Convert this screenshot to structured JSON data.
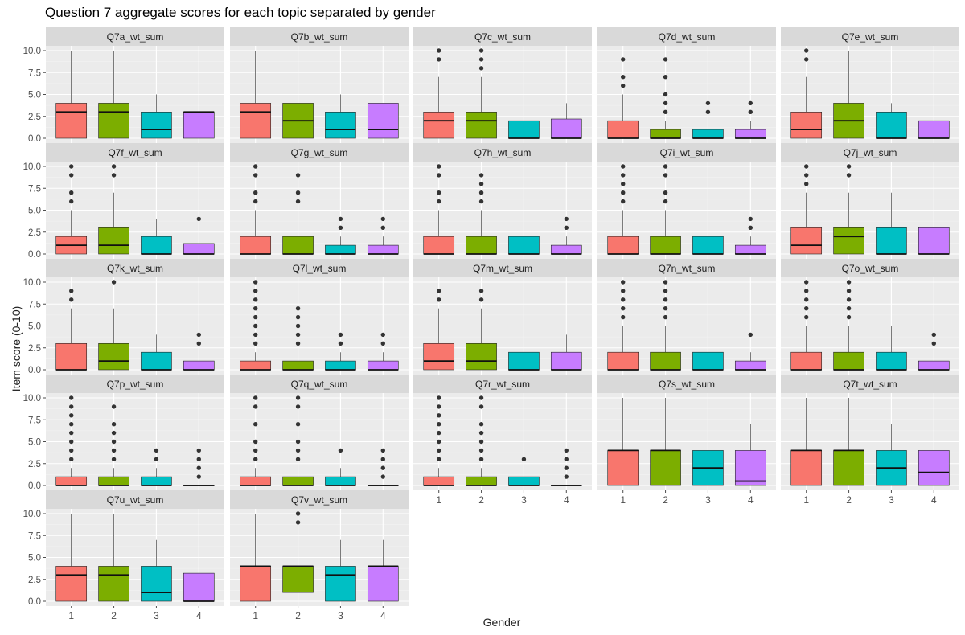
{
  "chart_data": {
    "type": "boxplot",
    "title": "Question 7 aggregate scores for each topic separated by gender",
    "xlabel": "Gender",
    "ylabel": "Item score (0-10)",
    "categories": [
      "1",
      "2",
      "3",
      "4"
    ],
    "ylim": [
      0,
      10
    ],
    "yticks": [
      "0.0",
      "2.5",
      "5.0",
      "7.5",
      "10.0"
    ],
    "colors": [
      "#F8766D",
      "#7CAE00",
      "#00BFC4",
      "#C77CFF"
    ],
    "panels": [
      {
        "name": "Q7a_wt_sum",
        "boxes": [
          {
            "q1": 0,
            "med": 3,
            "q3": 4,
            "lo": 0,
            "hi": 10,
            "out": []
          },
          {
            "q1": 0,
            "med": 3,
            "q3": 4,
            "lo": 0,
            "hi": 10,
            "out": []
          },
          {
            "q1": 0,
            "med": 1,
            "q3": 3,
            "lo": 0,
            "hi": 5,
            "out": []
          },
          {
            "q1": 0,
            "med": 3,
            "q3": 3,
            "lo": 0,
            "hi": 4,
            "out": []
          }
        ]
      },
      {
        "name": "Q7b_wt_sum",
        "boxes": [
          {
            "q1": 0,
            "med": 3,
            "q3": 4,
            "lo": 0,
            "hi": 10,
            "out": []
          },
          {
            "q1": 0,
            "med": 2,
            "q3": 4,
            "lo": 0,
            "hi": 10,
            "out": []
          },
          {
            "q1": 0,
            "med": 1,
            "q3": 3,
            "lo": 0,
            "hi": 5,
            "out": []
          },
          {
            "q1": 0,
            "med": 1,
            "q3": 4,
            "lo": 0,
            "hi": 4,
            "out": []
          }
        ]
      },
      {
        "name": "Q7c_wt_sum",
        "boxes": [
          {
            "q1": 0,
            "med": 2,
            "q3": 3,
            "lo": 0,
            "hi": 7,
            "out": [
              9,
              10
            ]
          },
          {
            "q1": 0,
            "med": 2,
            "q3": 3,
            "lo": 0,
            "hi": 7,
            "out": [
              8,
              9,
              10
            ]
          },
          {
            "q1": 0,
            "med": 0,
            "q3": 2,
            "lo": 0,
            "hi": 4,
            "out": []
          },
          {
            "q1": 0,
            "med": 0,
            "q3": 2.2,
            "lo": 0,
            "hi": 4,
            "out": []
          }
        ]
      },
      {
        "name": "Q7d_wt_sum",
        "boxes": [
          {
            "q1": 0,
            "med": 0,
            "q3": 2,
            "lo": 0,
            "hi": 5,
            "out": [
              6,
              7,
              9
            ]
          },
          {
            "q1": 0,
            "med": 0,
            "q3": 1,
            "lo": 0,
            "hi": 2,
            "out": [
              3,
              4,
              5,
              7,
              9
            ]
          },
          {
            "q1": 0,
            "med": 0,
            "q3": 1,
            "lo": 0,
            "hi": 2,
            "out": [
              3,
              4
            ]
          },
          {
            "q1": 0,
            "med": 0,
            "q3": 1,
            "lo": 0,
            "hi": 2,
            "out": [
              3,
              4
            ]
          }
        ]
      },
      {
        "name": "Q7e_wt_sum",
        "boxes": [
          {
            "q1": 0,
            "med": 1,
            "q3": 3,
            "lo": 0,
            "hi": 7,
            "out": [
              9,
              10
            ]
          },
          {
            "q1": 0,
            "med": 2,
            "q3": 4,
            "lo": 0,
            "hi": 10,
            "out": []
          },
          {
            "q1": 0,
            "med": 0,
            "q3": 3,
            "lo": 0,
            "hi": 4,
            "out": []
          },
          {
            "q1": 0,
            "med": 0,
            "q3": 2,
            "lo": 0,
            "hi": 4,
            "out": []
          }
        ]
      },
      {
        "name": "Q7f_wt_sum",
        "boxes": [
          {
            "q1": 0,
            "med": 1,
            "q3": 2,
            "lo": 0,
            "hi": 5,
            "out": [
              6,
              7,
              9,
              10
            ]
          },
          {
            "q1": 0,
            "med": 1,
            "q3": 3,
            "lo": 0,
            "hi": 7,
            "out": [
              9,
              10
            ]
          },
          {
            "q1": 0,
            "med": 0,
            "q3": 2,
            "lo": 0,
            "hi": 4,
            "out": []
          },
          {
            "q1": 0,
            "med": 0,
            "q3": 1.2,
            "lo": 0,
            "hi": 2,
            "out": [
              4
            ]
          }
        ]
      },
      {
        "name": "Q7g_wt_sum",
        "boxes": [
          {
            "q1": 0,
            "med": 0,
            "q3": 2,
            "lo": 0,
            "hi": 5,
            "out": [
              6,
              7,
              9,
              10
            ]
          },
          {
            "q1": 0,
            "med": 0,
            "q3": 2,
            "lo": 0,
            "hi": 5,
            "out": [
              6,
              7,
              9
            ]
          },
          {
            "q1": 0,
            "med": 0,
            "q3": 1,
            "lo": 0,
            "hi": 2,
            "out": [
              3,
              4
            ]
          },
          {
            "q1": 0,
            "med": 0,
            "q3": 1,
            "lo": 0,
            "hi": 2,
            "out": [
              3,
              4
            ]
          }
        ]
      },
      {
        "name": "Q7h_wt_sum",
        "boxes": [
          {
            "q1": 0,
            "med": 0,
            "q3": 2,
            "lo": 0,
            "hi": 5,
            "out": [
              6,
              7,
              9,
              10
            ]
          },
          {
            "q1": 0,
            "med": 0,
            "q3": 2,
            "lo": 0,
            "hi": 5,
            "out": [
              6,
              7,
              8,
              9
            ]
          },
          {
            "q1": 0,
            "med": 0,
            "q3": 2,
            "lo": 0,
            "hi": 4,
            "out": []
          },
          {
            "q1": 0,
            "med": 0,
            "q3": 1,
            "lo": 0,
            "hi": 2,
            "out": [
              3,
              4
            ]
          }
        ]
      },
      {
        "name": "Q7i_wt_sum",
        "boxes": [
          {
            "q1": 0,
            "med": 0,
            "q3": 2,
            "lo": 0,
            "hi": 5,
            "out": [
              6,
              7,
              8,
              9,
              10
            ]
          },
          {
            "q1": 0,
            "med": 0,
            "q3": 2,
            "lo": 0,
            "hi": 5,
            "out": [
              6,
              7,
              9,
              10
            ]
          },
          {
            "q1": 0,
            "med": 0,
            "q3": 2,
            "lo": 0,
            "hi": 5,
            "out": []
          },
          {
            "q1": 0,
            "med": 0,
            "q3": 1,
            "lo": 0,
            "hi": 2,
            "out": [
              3,
              4
            ]
          }
        ]
      },
      {
        "name": "Q7j_wt_sum",
        "boxes": [
          {
            "q1": 0,
            "med": 1,
            "q3": 3,
            "lo": 0,
            "hi": 7,
            "out": [
              8,
              9,
              10
            ]
          },
          {
            "q1": 0,
            "med": 2,
            "q3": 3,
            "lo": 0,
            "hi": 7,
            "out": [
              9,
              10
            ]
          },
          {
            "q1": 0,
            "med": 0,
            "q3": 3,
            "lo": 0,
            "hi": 7,
            "out": []
          },
          {
            "q1": 0,
            "med": 0,
            "q3": 3,
            "lo": 0,
            "hi": 4,
            "out": []
          }
        ]
      },
      {
        "name": "Q7k_wt_sum",
        "boxes": [
          {
            "q1": 0,
            "med": 0,
            "q3": 3,
            "lo": 0,
            "hi": 7,
            "out": [
              8,
              9
            ]
          },
          {
            "q1": 0,
            "med": 1,
            "q3": 3,
            "lo": 0,
            "hi": 7,
            "out": [
              10
            ]
          },
          {
            "q1": 0,
            "med": 0,
            "q3": 2,
            "lo": 0,
            "hi": 4,
            "out": []
          },
          {
            "q1": 0,
            "med": 0,
            "q3": 1,
            "lo": 0,
            "hi": 2,
            "out": [
              3,
              4
            ]
          }
        ]
      },
      {
        "name": "Q7l_wt_sum",
        "boxes": [
          {
            "q1": 0,
            "med": 0,
            "q3": 1,
            "lo": 0,
            "hi": 2,
            "out": [
              3,
              4,
              5,
              6,
              7,
              8,
              9,
              10
            ]
          },
          {
            "q1": 0,
            "med": 0,
            "q3": 1,
            "lo": 0,
            "hi": 2,
            "out": [
              3,
              4,
              5,
              6,
              7
            ]
          },
          {
            "q1": 0,
            "med": 0,
            "q3": 1,
            "lo": 0,
            "hi": 2,
            "out": [
              3,
              4
            ]
          },
          {
            "q1": 0,
            "med": 0,
            "q3": 1,
            "lo": 0,
            "hi": 2,
            "out": [
              3,
              4
            ]
          }
        ]
      },
      {
        "name": "Q7m_wt_sum",
        "boxes": [
          {
            "q1": 0,
            "med": 1,
            "q3": 3,
            "lo": 0,
            "hi": 7,
            "out": [
              8,
              9
            ]
          },
          {
            "q1": 0,
            "med": 1,
            "q3": 3,
            "lo": 0,
            "hi": 7,
            "out": [
              8,
              9
            ]
          },
          {
            "q1": 0,
            "med": 0,
            "q3": 2,
            "lo": 0,
            "hi": 4,
            "out": []
          },
          {
            "q1": 0,
            "med": 0,
            "q3": 2,
            "lo": 0,
            "hi": 4,
            "out": []
          }
        ]
      },
      {
        "name": "Q7n_wt_sum",
        "boxes": [
          {
            "q1": 0,
            "med": 0,
            "q3": 2,
            "lo": 0,
            "hi": 5,
            "out": [
              6,
              7,
              8,
              9,
              10
            ]
          },
          {
            "q1": 0,
            "med": 0,
            "q3": 2,
            "lo": 0,
            "hi": 5,
            "out": [
              6,
              7,
              8,
              9,
              10
            ]
          },
          {
            "q1": 0,
            "med": 0,
            "q3": 2,
            "lo": 0,
            "hi": 4,
            "out": []
          },
          {
            "q1": 0,
            "med": 0,
            "q3": 1,
            "lo": 0,
            "hi": 2,
            "out": [
              4
            ]
          }
        ]
      },
      {
        "name": "Q7o_wt_sum",
        "boxes": [
          {
            "q1": 0,
            "med": 0,
            "q3": 2,
            "lo": 0,
            "hi": 5,
            "out": [
              6,
              7,
              8,
              9,
              10
            ]
          },
          {
            "q1": 0,
            "med": 0,
            "q3": 2,
            "lo": 0,
            "hi": 5,
            "out": [
              6,
              7,
              8,
              9,
              10
            ]
          },
          {
            "q1": 0,
            "med": 0,
            "q3": 2,
            "lo": 0,
            "hi": 5,
            "out": []
          },
          {
            "q1": 0,
            "med": 0,
            "q3": 1,
            "lo": 0,
            "hi": 2,
            "out": [
              3,
              4
            ]
          }
        ]
      },
      {
        "name": "Q7p_wt_sum",
        "boxes": [
          {
            "q1": 0,
            "med": 0,
            "q3": 1,
            "lo": 0,
            "hi": 2,
            "out": [
              3,
              4,
              5,
              6,
              7,
              8,
              9,
              10
            ]
          },
          {
            "q1": 0,
            "med": 0,
            "q3": 1,
            "lo": 0,
            "hi": 2,
            "out": [
              3,
              4,
              5,
              6,
              7,
              9
            ]
          },
          {
            "q1": 0,
            "med": 0,
            "q3": 1,
            "lo": 0,
            "hi": 2,
            "out": [
              3,
              4
            ]
          },
          {
            "q1": 0,
            "med": 0,
            "q3": 0,
            "lo": 0,
            "hi": 0,
            "out": [
              1,
              2,
              3,
              4
            ]
          }
        ]
      },
      {
        "name": "Q7q_wt_sum",
        "boxes": [
          {
            "q1": 0,
            "med": 0,
            "q3": 1,
            "lo": 0,
            "hi": 2,
            "out": [
              3,
              4,
              5,
              7,
              9,
              10
            ]
          },
          {
            "q1": 0,
            "med": 0,
            "q3": 1,
            "lo": 0,
            "hi": 2,
            "out": [
              3,
              4,
              5,
              7,
              9,
              10
            ]
          },
          {
            "q1": 0,
            "med": 0,
            "q3": 1,
            "lo": 0,
            "hi": 2,
            "out": [
              4
            ]
          },
          {
            "q1": 0,
            "med": 0,
            "q3": 0,
            "lo": 0,
            "hi": 0,
            "out": [
              1,
              2,
              3,
              4
            ]
          }
        ]
      },
      {
        "name": "Q7r_wt_sum",
        "boxes": [
          {
            "q1": 0,
            "med": 0,
            "q3": 1,
            "lo": 0,
            "hi": 2,
            "out": [
              3,
              4,
              5,
              6,
              7,
              8,
              9,
              10
            ]
          },
          {
            "q1": 0,
            "med": 0,
            "q3": 1,
            "lo": 0,
            "hi": 2,
            "out": [
              3,
              4,
              5,
              6,
              7,
              9,
              10
            ]
          },
          {
            "q1": 0,
            "med": 0,
            "q3": 1,
            "lo": 0,
            "hi": 2,
            "out": [
              3
            ]
          },
          {
            "q1": 0,
            "med": 0,
            "q3": 0,
            "lo": 0,
            "hi": 0,
            "out": [
              1,
              2,
              3,
              4
            ]
          }
        ]
      },
      {
        "name": "Q7s_wt_sum",
        "boxes": [
          {
            "q1": 0,
            "med": 4,
            "q3": 4,
            "lo": 0,
            "hi": 10,
            "out": []
          },
          {
            "q1": 0,
            "med": 4,
            "q3": 4,
            "lo": 0,
            "hi": 10,
            "out": []
          },
          {
            "q1": 0,
            "med": 2,
            "q3": 4,
            "lo": 0,
            "hi": 9,
            "out": []
          },
          {
            "q1": 0,
            "med": 0.5,
            "q3": 4,
            "lo": 0,
            "hi": 7,
            "out": []
          }
        ]
      },
      {
        "name": "Q7t_wt_sum",
        "boxes": [
          {
            "q1": 0,
            "med": 4,
            "q3": 4,
            "lo": 0,
            "hi": 10,
            "out": []
          },
          {
            "q1": 0,
            "med": 4,
            "q3": 4,
            "lo": 0,
            "hi": 10,
            "out": []
          },
          {
            "q1": 0,
            "med": 2,
            "q3": 4,
            "lo": 0,
            "hi": 7,
            "out": []
          },
          {
            "q1": 0,
            "med": 1.5,
            "q3": 4,
            "lo": 0,
            "hi": 7,
            "out": []
          }
        ]
      },
      {
        "name": "Q7u_wt_sum",
        "boxes": [
          {
            "q1": 0,
            "med": 3,
            "q3": 4,
            "lo": 0,
            "hi": 10,
            "out": []
          },
          {
            "q1": 0,
            "med": 3,
            "q3": 4,
            "lo": 0,
            "hi": 10,
            "out": []
          },
          {
            "q1": 0,
            "med": 1,
            "q3": 4,
            "lo": 0,
            "hi": 7,
            "out": []
          },
          {
            "q1": 0,
            "med": 0,
            "q3": 3.2,
            "lo": 0,
            "hi": 7,
            "out": []
          }
        ]
      },
      {
        "name": "Q7v_wt_sum",
        "boxes": [
          {
            "q1": 0,
            "med": 4,
            "q3": 4,
            "lo": 0,
            "hi": 10,
            "out": []
          },
          {
            "q1": 1,
            "med": 4,
            "q3": 4,
            "lo": 0,
            "hi": 8,
            "out": [
              9,
              10
            ]
          },
          {
            "q1": 0,
            "med": 3,
            "q3": 4,
            "lo": 0,
            "hi": 7,
            "out": []
          },
          {
            "q1": 0,
            "med": 4,
            "q3": 4,
            "lo": 0,
            "hi": 7,
            "out": []
          }
        ]
      }
    ]
  }
}
